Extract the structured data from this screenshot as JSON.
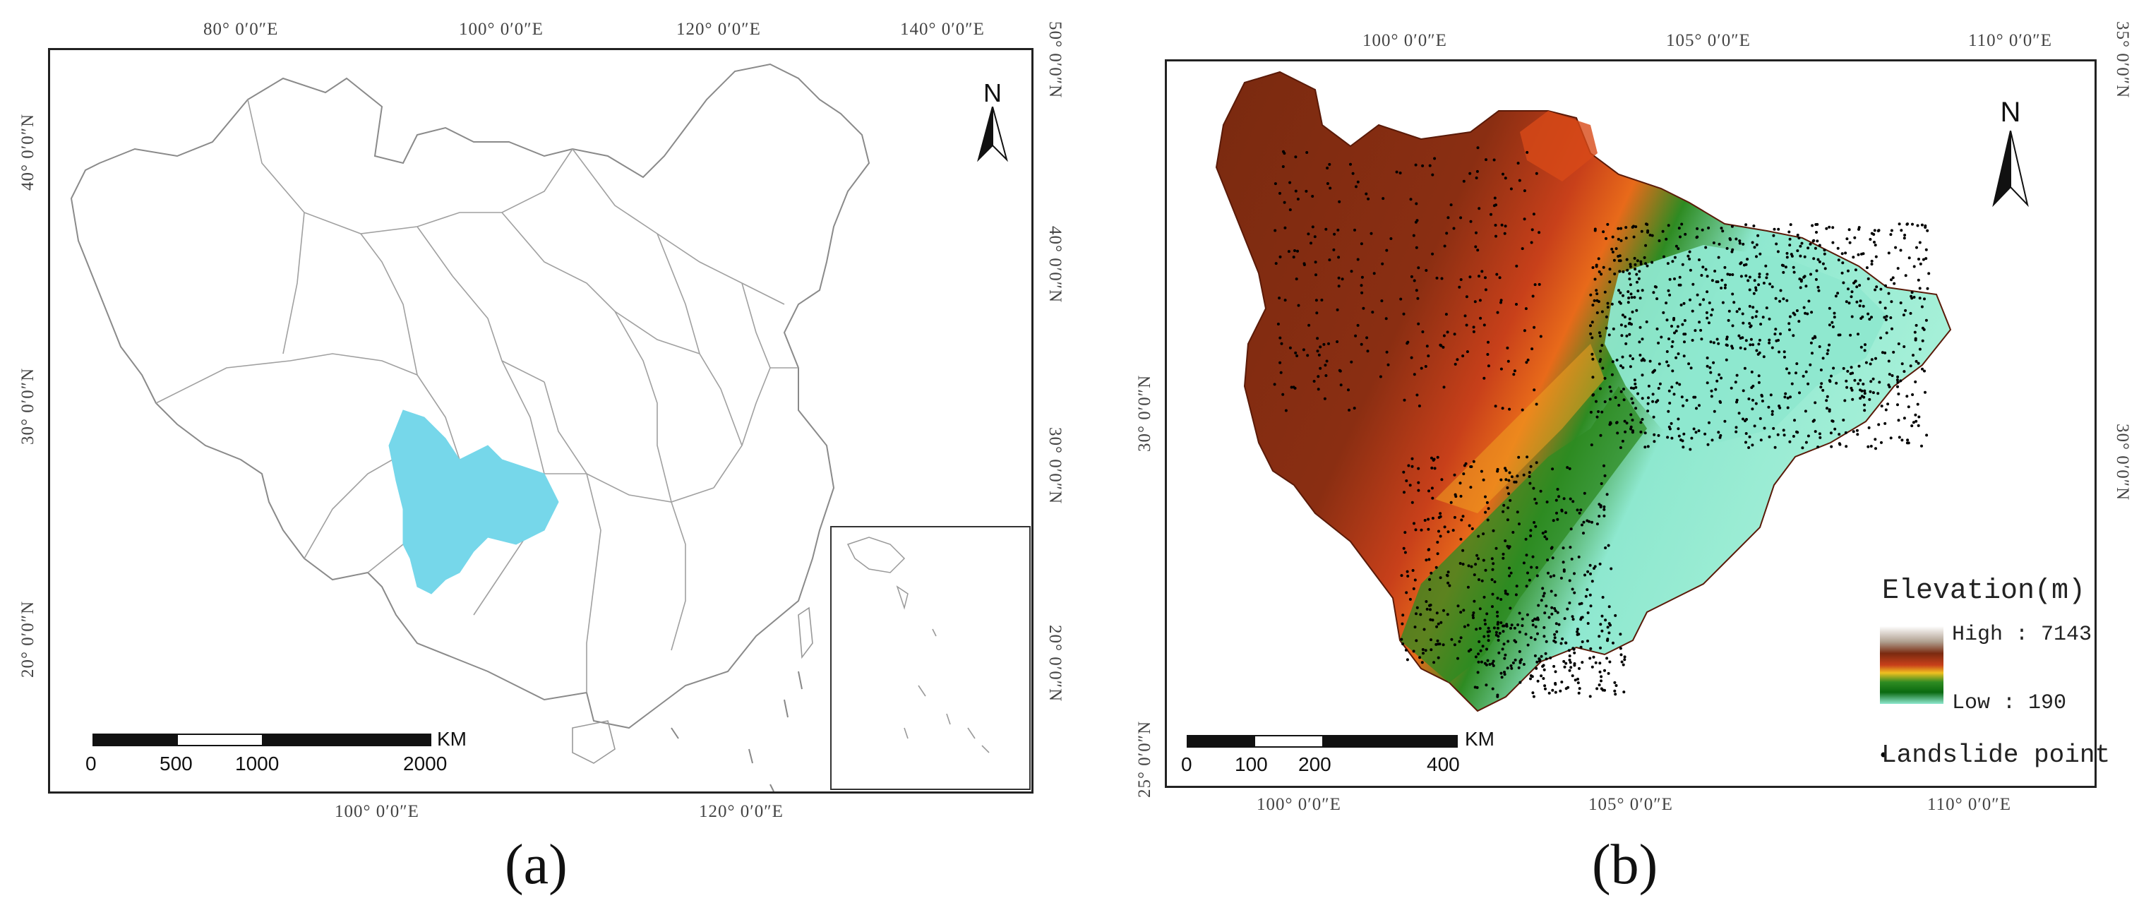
{
  "panel_a": {
    "caption": "(a)",
    "top_labels": [
      "80° 0′0″E",
      "100° 0′0″E",
      "120° 0′0″E",
      "140° 0′0″E"
    ],
    "bottom_labels": [
      "100° 0′0″E",
      "120° 0′0″E"
    ],
    "left_labels": [
      "40° 0′0″N",
      "30° 0′0″N",
      "20° 0′0″N"
    ],
    "right_labels": [
      "50° 0′0″N",
      "40° 0′0″N",
      "30° 0′0″N",
      "20° 0′0″N"
    ],
    "north": "N",
    "scale": {
      "ticks": [
        "0",
        "500",
        "1000",
        "2000"
      ],
      "unit": "KM"
    },
    "highlight_color": "#76d7ea"
  },
  "panel_b": {
    "caption": "(b)",
    "top_labels": [
      "100° 0′0″E",
      "105° 0′0″E",
      "110° 0′0″E"
    ],
    "bottom_labels": [
      "100° 0′0″E",
      "105° 0′0″E",
      "110° 0′0″E"
    ],
    "left_labels": [
      "30° 0′0″N",
      "25° 0′0″N"
    ],
    "right_labels": [
      "35° 0′0″N",
      "30° 0′0″N"
    ],
    "north": "N",
    "scale": {
      "ticks": [
        "0",
        "100",
        "200",
        "400"
      ],
      "unit": "KM"
    },
    "legend": {
      "title": "Elevation(m)",
      "high": "High : 7143",
      "low": "Low : 190",
      "point": "Landslide point"
    },
    "colors": {
      "high": "#7a2a10",
      "mid": "#e0561a",
      "low_mid": "#2e8b22",
      "low": "#8ee8cf"
    }
  }
}
